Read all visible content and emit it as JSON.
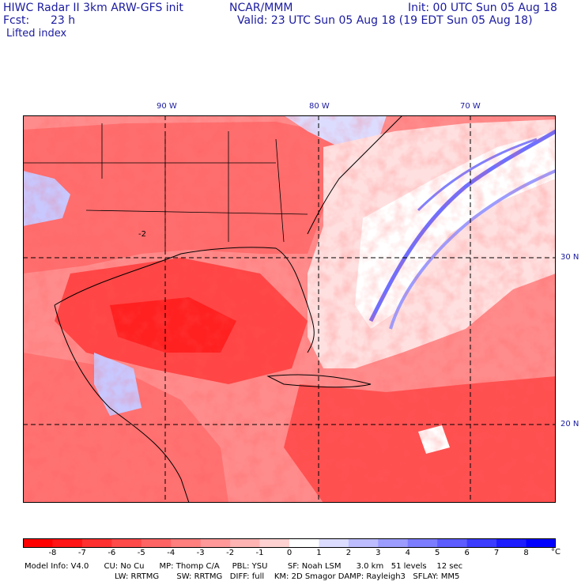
{
  "header": {
    "title": "HIWC Radar II 3km ARW-GFS init",
    "org": "NCAR/MMM",
    "init": "Init: 00 UTC Sun 05 Aug 18",
    "fcst_label": "Fcst:",
    "fcst_value": "23 h",
    "valid": "Valid: 23 UTC Sun 05 Aug 18 (19 EDT Sun 05 Aug 18)",
    "field": "Lifted index"
  },
  "map": {
    "lon_labels": [
      "90 W",
      "80 W",
      "70 W"
    ],
    "lat_labels": [
      "30 N",
      "20 N"
    ],
    "contour_label": "-2"
  },
  "colorbar": {
    "unit": "°C",
    "ticks": [
      "-8",
      "-7",
      "-6",
      "-5",
      "-4",
      "-3",
      "-2",
      "-1",
      "0",
      "1",
      "2",
      "3",
      "4",
      "5",
      "6",
      "7",
      "8"
    ],
    "colors": [
      "#ff0000",
      "#ff1515",
      "#ff3030",
      "#ff4a4a",
      "#ff6464",
      "#ff7e7e",
      "#ff9898",
      "#ffb4b4",
      "#ffd2d2",
      "#ffffff",
      "#dcdcff",
      "#bcbcff",
      "#9c9cff",
      "#7c7cff",
      "#5c5cff",
      "#3c3cff",
      "#1c1cff",
      "#0000ff"
    ]
  },
  "model_info": {
    "line1": "Model Info: V4.0      CU: No Cu      MP: Thomp C/A     PBL: YSU        SF: Noah LSM      3.0 km   51 levels    12 sec",
    "line2": "LW: RRTMG       SW: RRTMG   DIFF: full    KM: 2D Smagor DAMP: Rayleigh3   SFLAY: MM5"
  }
}
